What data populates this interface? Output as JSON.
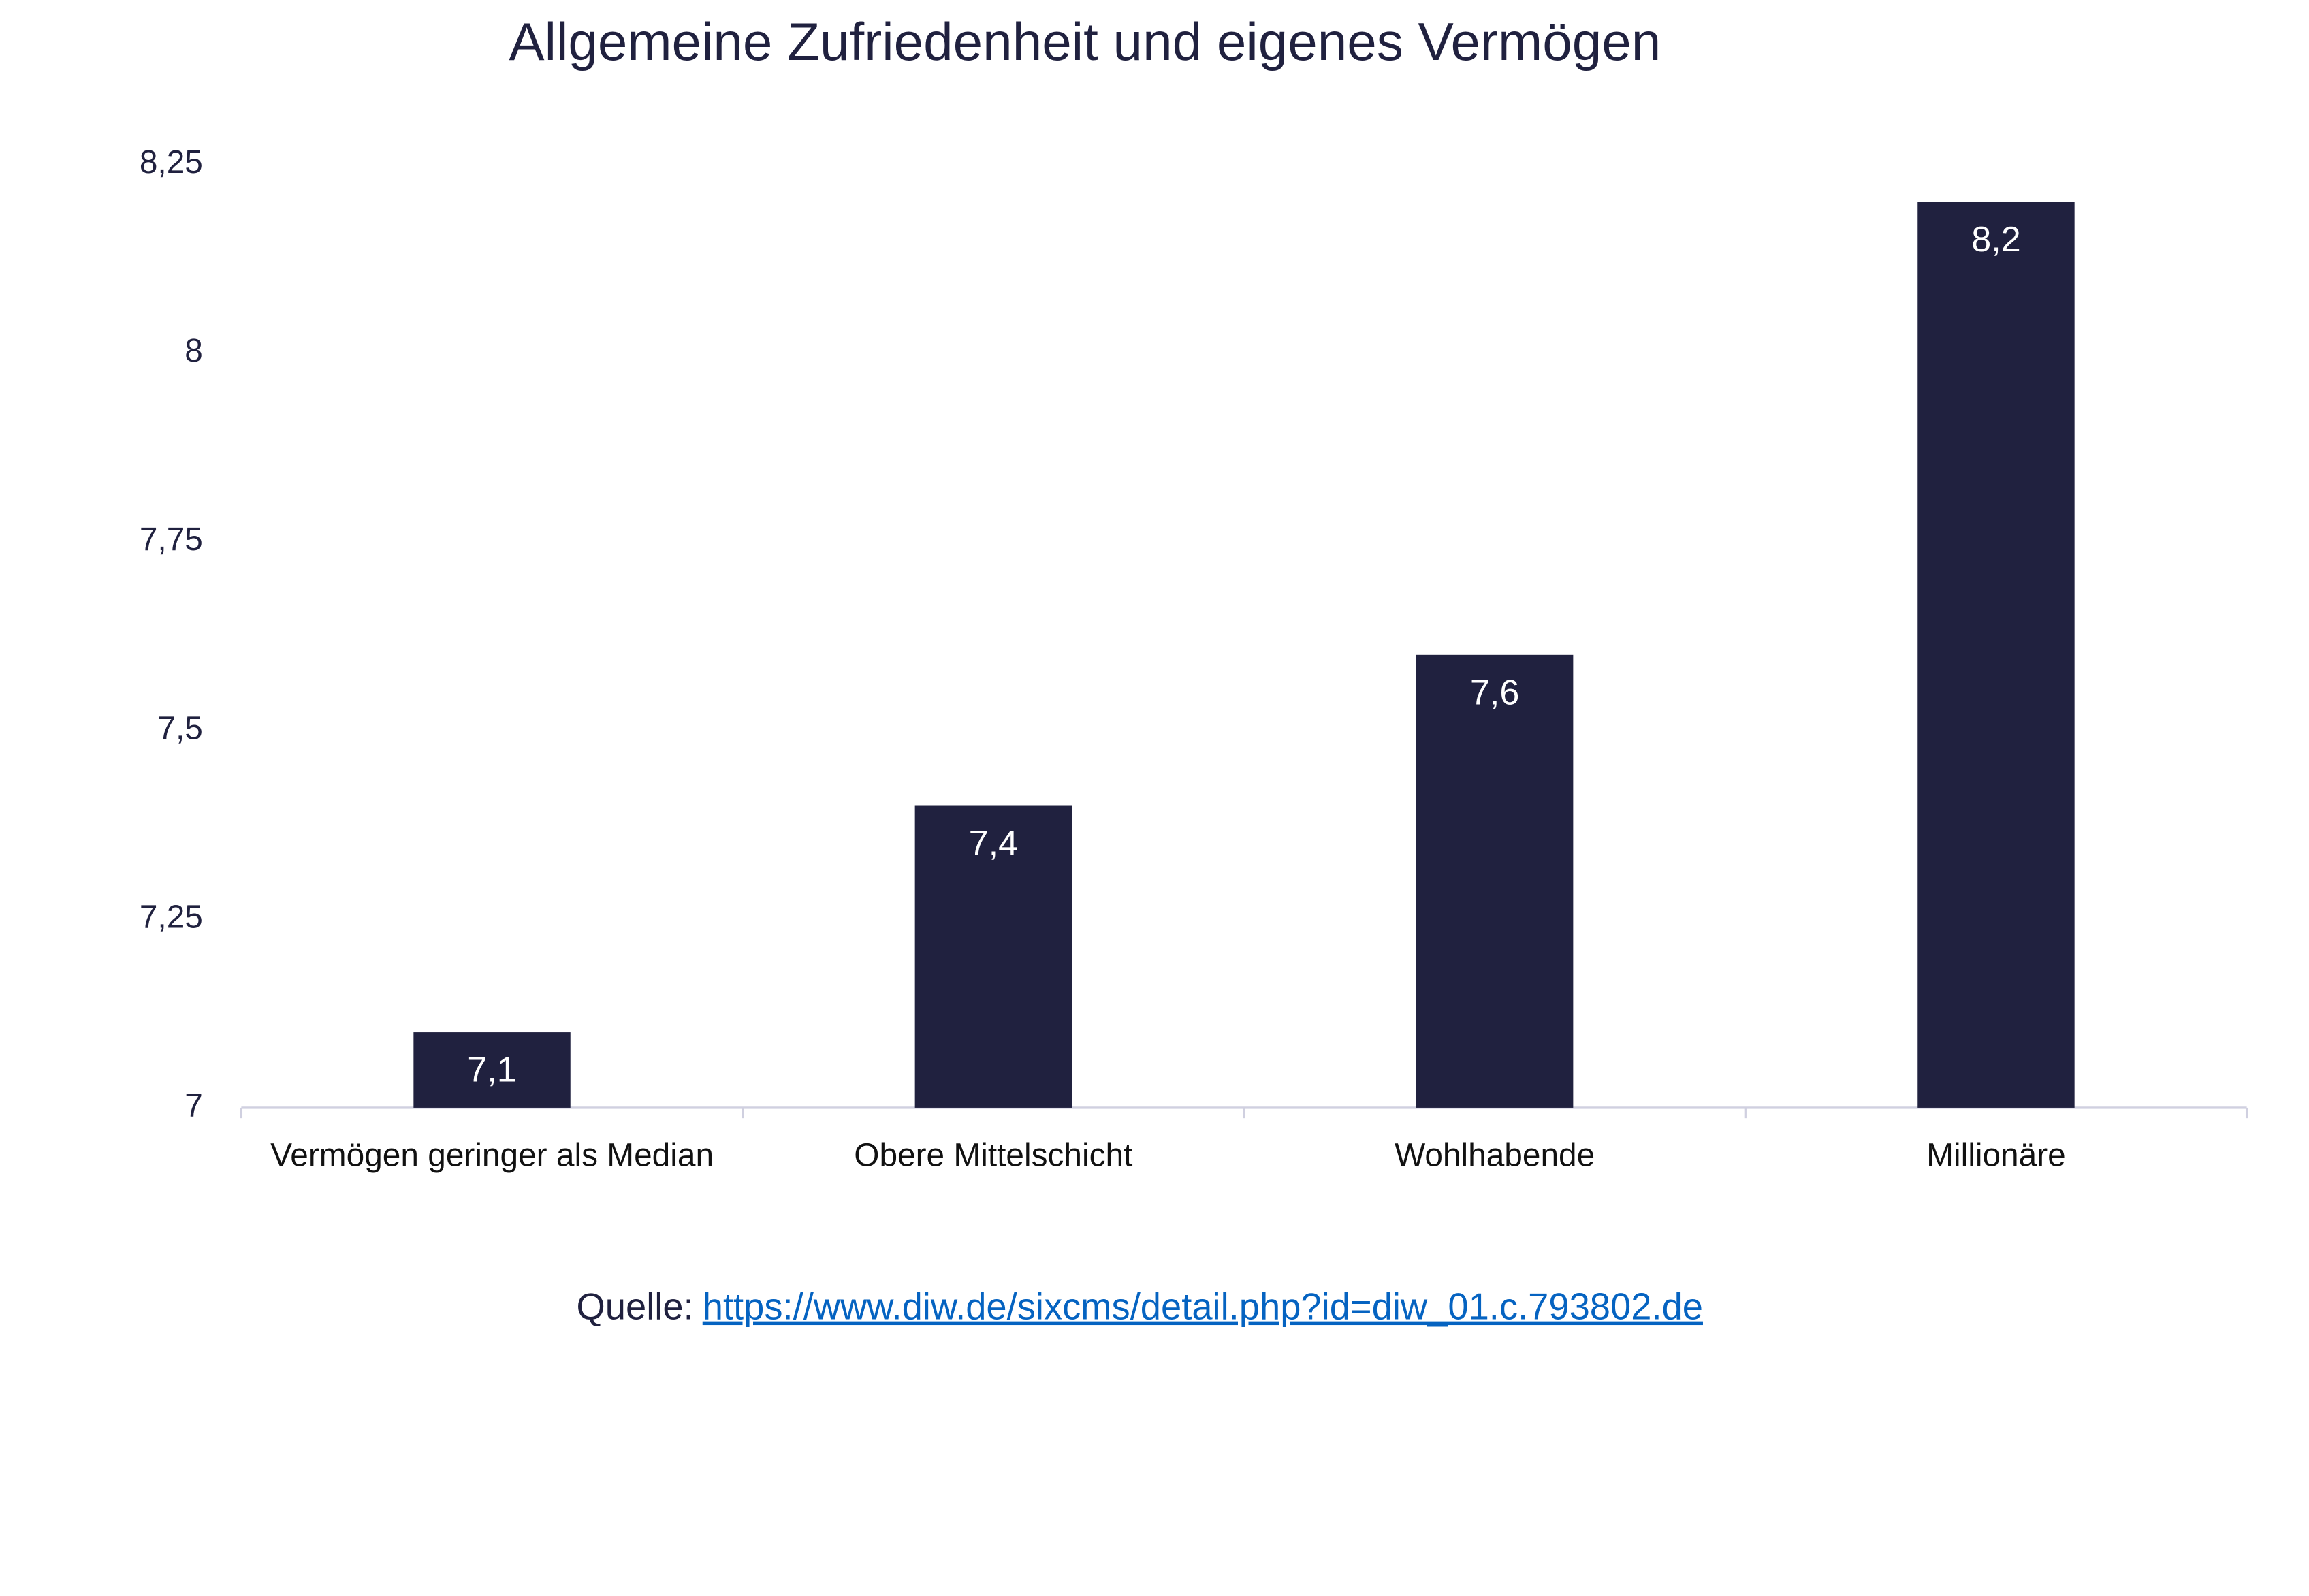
{
  "chart_data": {
    "type": "bar",
    "title": "Allgemeine Zufriedenheit und eigenes Vermögen",
    "categories": [
      "Vermögen geringer als Median",
      "Obere Mittelschicht",
      "Wohlhabende",
      "Millionäre"
    ],
    "values": [
      7.1,
      7.4,
      7.6,
      8.2
    ],
    "value_labels": [
      "7,1",
      "7,4",
      "7,6",
      "8,2"
    ],
    "color": "#20213f",
    "ylim": [
      7,
      8.25
    ],
    "yticks": [
      7,
      {
        "value": 7.25,
        "label": "7,25"
      },
      {
        "value": 7.5,
        "label": "7,5"
      },
      {
        "value": 7.75,
        "label": "7,75"
      },
      8,
      {
        "value": 8.25,
        "label": "8,25"
      }
    ],
    "grid": false
  },
  "source": {
    "label": "Quelle:",
    "url": "https://www.diw.de/sixcms/detail.php?id=diw_01.c.793802.de"
  }
}
